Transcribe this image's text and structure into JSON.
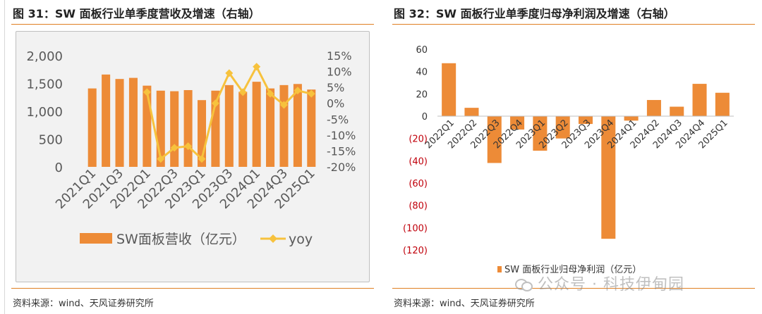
{
  "left": {
    "title": "图 31：SW 面板行业单季度营收及增速（右轴）",
    "source": "资料来源：wind、天风证券研究所"
  },
  "right": {
    "title": "图 32：SW 面板行业单季度归母净利润及增速（右轴）",
    "source": "资料来源：wind、天风证券研究所"
  },
  "watermark": "公众号 · 科技伊甸园",
  "colors": {
    "bar": "#ed8b37",
    "line": "#f7c23d",
    "rule": "#e07f22",
    "neg": "#c0000b"
  },
  "chart_data": [
    {
      "type": "bar",
      "title": "",
      "categories": [
        "2021Q1",
        "2021Q2",
        "2021Q3",
        "2021Q4",
        "2022Q1",
        "2022Q2",
        "2022Q3",
        "2022Q4",
        "2023Q1",
        "2023Q2",
        "2023Q3",
        "2023Q4",
        "2024Q1",
        "2024Q2",
        "2024Q3",
        "2024Q4",
        "2025Q1"
      ],
      "x_tick_labels": [
        "2021Q1",
        "2021Q3",
        "2022Q1",
        "2022Q3",
        "2023Q1",
        "2023Q3",
        "2024Q1",
        "2024Q3",
        "2025Q1"
      ],
      "series": [
        {
          "name": "SW面板营收（亿元）",
          "kind": "bar",
          "axis": "left",
          "values": [
            1410,
            1660,
            1580,
            1600,
            1460,
            1370,
            1360,
            1380,
            1200,
            1370,
            1470,
            1350,
            1530,
            1410,
            1470,
            1490,
            1390
          ]
        },
        {
          "name": "yoy",
          "kind": "line",
          "axis": "right",
          "values": [
            null,
            null,
            null,
            null,
            3.5,
            -17.5,
            -14,
            -13.5,
            -17.5,
            0,
            9.5,
            3.5,
            11.5,
            3,
            -0.5,
            4,
            3
          ]
        }
      ],
      "ylim": [
        0,
        2000
      ],
      "yticks": [
        "0",
        "500",
        "1,000",
        "1,500",
        "2,000"
      ],
      "y2lim": [
        -20,
        15
      ],
      "y2ticks": [
        "-20%",
        "-15%",
        "-10%",
        "-5%",
        "0%",
        "5%",
        "10%",
        "15%"
      ],
      "legend": "bottom"
    },
    {
      "type": "bar",
      "title": "",
      "categories": [
        "2022Q1",
        "2022Q2",
        "2022Q3",
        "2022Q4",
        "2023Q1",
        "2023Q2",
        "2023Q3",
        "2023Q4",
        "2024Q1",
        "2024Q2",
        "2024Q3",
        "2024Q4",
        "2025Q1"
      ],
      "series": [
        {
          "name": "SW 面板行业归母净利润（亿元）",
          "kind": "bar",
          "axis": "left",
          "values": [
            47.5,
            7.5,
            -42,
            -12,
            -31,
            -20,
            -7,
            -110,
            -4,
            14.5,
            8.5,
            29,
            21
          ]
        }
      ],
      "ylim": [
        -120,
        60
      ],
      "yticks": [
        "(120)",
        "(100)",
        "(80)",
        "(60)",
        "(40)",
        "(20)",
        "0",
        "20",
        "40",
        "60"
      ],
      "legend": "bottom"
    }
  ]
}
